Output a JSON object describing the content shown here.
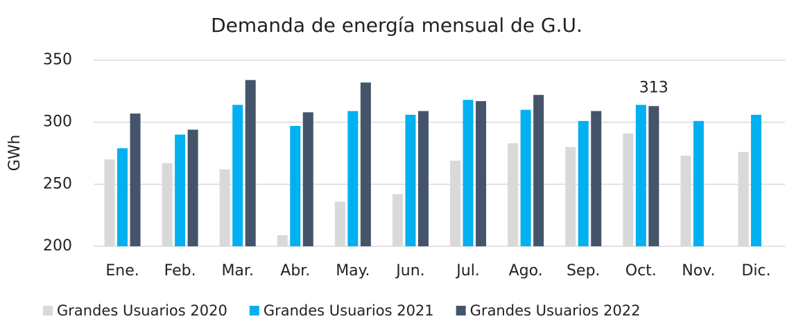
{
  "chart_data": {
    "type": "bar",
    "title": "Demanda de energía mensual de G.U.",
    "y_label": "GWh",
    "categories": [
      "Ene.",
      "Feb.",
      "Mar.",
      "Abr.",
      "May.",
      "Jun.",
      "Jul.",
      "Ago.",
      "Sep.",
      "Oct.",
      "Nov.",
      "Dic."
    ],
    "series": [
      {
        "name": "Grandes Usuarios 2020",
        "color": "#d9d9d9",
        "values": [
          270,
          267,
          262,
          209,
          236,
          242,
          269,
          283,
          280,
          291,
          273,
          276
        ]
      },
      {
        "name": "Grandes Usuarios 2021",
        "color": "#00b0f0",
        "values": [
          279,
          290,
          314,
          297,
          309,
          306,
          318,
          310,
          301,
          314,
          301,
          306
        ]
      },
      {
        "name": "Grandes Usuarios 2022",
        "color": "#44546a",
        "values": [
          307,
          294,
          334,
          308,
          332,
          309,
          317,
          322,
          309,
          313,
          null,
          null
        ],
        "value_labels": [
          null,
          null,
          null,
          null,
          null,
          null,
          null,
          null,
          null,
          "313",
          null,
          null
        ]
      }
    ],
    "ylim": [
      200,
      350
    ],
    "yticks": [
      200,
      250,
      300,
      350
    ],
    "grid": true,
    "legend": "bottom"
  }
}
